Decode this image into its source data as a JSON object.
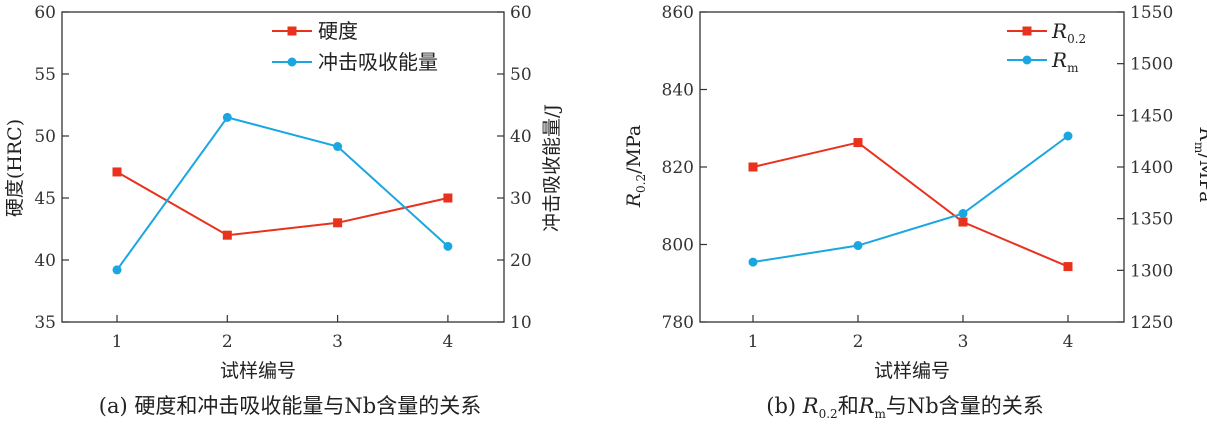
{
  "colors": {
    "red": "#e8321e",
    "blue": "#1aa7e0",
    "axis": "#333333"
  },
  "chart_data": [
    {
      "type": "line",
      "caption": "(a) 硬度和冲击吸收能量与Nb含量的关系",
      "xlabel": "试样编号",
      "ylabel_left": "硬度(HRC)",
      "ylabel_right": "冲击吸收能量/J",
      "categories": [
        "1",
        "2",
        "3",
        "4"
      ],
      "ylim_left": [
        35,
        60
      ],
      "yticks_left": [
        35,
        40,
        45,
        50,
        55,
        60
      ],
      "ylim_right": [
        10,
        60
      ],
      "yticks_right": [
        10,
        20,
        30,
        40,
        50,
        60
      ],
      "legend_position": "top-right",
      "series": [
        {
          "name": "硬度",
          "axis": "left",
          "marker": "square",
          "color": "#e8321e",
          "values": [
            47.1,
            42.0,
            43.0,
            45.0
          ]
        },
        {
          "name": "冲击吸收能量",
          "axis": "right",
          "marker": "circle",
          "color": "#1aa7e0",
          "values": [
            18.4,
            43.0,
            38.3,
            22.2
          ]
        }
      ]
    },
    {
      "type": "line",
      "caption_prefix": "(b) ",
      "caption_r02": "R",
      "caption_r02_sub": "0.2",
      "caption_mid": "和",
      "caption_rm": "R",
      "caption_rm_sub": "m",
      "caption_suffix": "与Nb含量的关系",
      "xlabel": "试样编号",
      "ylabel_left_symbol": "R",
      "ylabel_left_sub": "0.2",
      "ylabel_left_unit": "/MPa",
      "ylabel_right_symbol": "R",
      "ylabel_right_sub": "m",
      "ylabel_right_unit": "/MPa",
      "categories": [
        "1",
        "2",
        "3",
        "4"
      ],
      "ylim_left": [
        780,
        860
      ],
      "yticks_left": [
        780,
        800,
        820,
        840,
        860
      ],
      "ylim_right": [
        1250,
        1550
      ],
      "yticks_right": [
        1250,
        1300,
        1350,
        1400,
        1450,
        1500,
        1550
      ],
      "legend_position": "top-right",
      "series": [
        {
          "symbol": "R",
          "sub": "0.2",
          "axis": "left",
          "marker": "square",
          "color": "#e8321e",
          "values": [
            820,
            826.3,
            805.8,
            794.3
          ]
        },
        {
          "symbol": "R",
          "sub": "m",
          "axis": "right",
          "marker": "circle",
          "color": "#1aa7e0",
          "values": [
            1308,
            1324,
            1355,
            1430
          ]
        }
      ]
    }
  ]
}
